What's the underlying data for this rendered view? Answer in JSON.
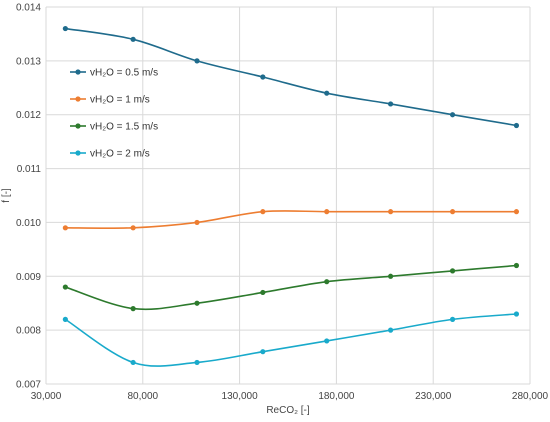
{
  "chart_data": {
    "type": "line",
    "title": "",
    "xlabel": "ReCO₂ [-]",
    "ylabel": "f [-]",
    "xlim": [
      30000,
      280000
    ],
    "ylim": [
      0.007,
      0.014
    ],
    "x_ticks": [
      30000,
      80000,
      130000,
      180000,
      230000,
      280000
    ],
    "x_tick_labels": [
      "30,000",
      "80,000",
      "130,000",
      "180,000",
      "230,000",
      "280,000"
    ],
    "y_ticks": [
      0.007,
      0.008,
      0.009,
      0.01,
      0.011,
      0.012,
      0.013,
      0.014
    ],
    "y_tick_labels": [
      "0.007",
      "0.008",
      "0.009",
      "0.010",
      "0.011",
      "0.012",
      "0.013",
      "0.014"
    ],
    "grid": true,
    "legend_position": "upper-left",
    "series": [
      {
        "name": "vH₂O = 0.5 m/s",
        "color": "#1f6b8c",
        "x": [
          40000,
          75000,
          108000,
          142000,
          175000,
          208000,
          240000,
          273000
        ],
        "values": [
          0.0136,
          0.0134,
          0.013,
          0.0127,
          0.0124,
          0.0122,
          0.012,
          0.0118
        ]
      },
      {
        "name": "vH₂O = 1 m/s",
        "color": "#ed7d31",
        "x": [
          40000,
          75000,
          108000,
          142000,
          175000,
          208000,
          240000,
          273000
        ],
        "values": [
          0.0099,
          0.0099,
          0.01,
          0.0102,
          0.0102,
          0.0102,
          0.0102,
          0.0102
        ]
      },
      {
        "name": "vH₂O = 1.5 m/s",
        "color": "#2d7a2d",
        "x": [
          40000,
          75000,
          108000,
          142000,
          175000,
          208000,
          240000,
          273000
        ],
        "values": [
          0.0088,
          0.0084,
          0.0085,
          0.0087,
          0.0089,
          0.009,
          0.0091,
          0.0092
        ]
      },
      {
        "name": "vH₂O = 2 m/s",
        "color": "#19aacb",
        "x": [
          40000,
          75000,
          108000,
          142000,
          175000,
          208000,
          240000,
          273000
        ],
        "values": [
          0.0082,
          0.0074,
          0.0074,
          0.0076,
          0.0078,
          0.008,
          0.0082,
          0.0083
        ]
      }
    ]
  }
}
